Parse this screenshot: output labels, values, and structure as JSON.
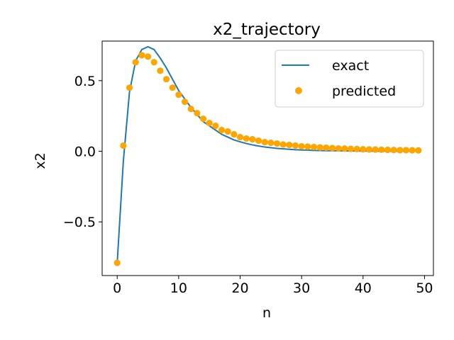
{
  "chart_data": {
    "type": "line",
    "title": "x2_trajectory",
    "xlabel": "n",
    "ylabel": "x2",
    "xlim": [
      -2.45,
      51.45
    ],
    "ylim": [
      -0.88,
      0.78
    ],
    "grid": false,
    "legend_position": "top-right",
    "x_ticks": [
      0,
      10,
      20,
      30,
      40,
      50
    ],
    "x_tick_labels": [
      "0",
      "10",
      "20",
      "30",
      "40",
      "50"
    ],
    "y_ticks": [
      -0.5,
      0.0,
      0.5
    ],
    "y_tick_labels": [
      "−0.5",
      "0.0",
      "0.5"
    ],
    "series": [
      {
        "name": "exact",
        "kind": "line",
        "color": "#1f77b4",
        "x": [
          0,
          1,
          2,
          3,
          4,
          5,
          6,
          7,
          8,
          9,
          10,
          11,
          12,
          13,
          14,
          15,
          16,
          17,
          18,
          19,
          20,
          21,
          22,
          23,
          24,
          25,
          26,
          27,
          28,
          29,
          30,
          31,
          32,
          33,
          34,
          35,
          36,
          37,
          38,
          39,
          40,
          41,
          42,
          43,
          44,
          45,
          46,
          47,
          48,
          49
        ],
        "y": [
          -0.79,
          -0.07,
          0.42,
          0.64,
          0.72,
          0.74,
          0.72,
          0.66,
          0.59,
          0.51,
          0.43,
          0.37,
          0.31,
          0.26,
          0.21,
          0.18,
          0.15,
          0.12,
          0.1,
          0.08,
          0.067,
          0.055,
          0.045,
          0.037,
          0.03,
          0.025,
          0.02,
          0.017,
          0.014,
          0.011,
          0.009,
          0.008,
          0.006,
          0.005,
          0.004,
          0.004,
          0.003,
          0.003,
          0.002,
          0.002,
          0.002,
          0.001,
          0.001,
          0.001,
          0.001,
          0.001,
          0.001,
          0.001,
          0.0,
          0.0
        ]
      },
      {
        "name": "predicted",
        "kind": "scatter",
        "color": "#ffa500",
        "x": [
          0,
          1,
          2,
          3,
          4,
          5,
          6,
          7,
          8,
          9,
          10,
          11,
          12,
          13,
          14,
          15,
          16,
          17,
          18,
          19,
          20,
          21,
          22,
          23,
          24,
          25,
          26,
          27,
          28,
          29,
          30,
          31,
          32,
          33,
          34,
          35,
          36,
          37,
          38,
          39,
          40,
          41,
          42,
          43,
          44,
          45,
          46,
          47,
          48,
          49
        ],
        "y": [
          -0.79,
          0.04,
          0.45,
          0.63,
          0.68,
          0.67,
          0.63,
          0.57,
          0.51,
          0.45,
          0.4,
          0.35,
          0.3,
          0.27,
          0.23,
          0.2,
          0.18,
          0.15,
          0.14,
          0.12,
          0.1,
          0.09,
          0.085,
          0.075,
          0.065,
          0.06,
          0.055,
          0.048,
          0.045,
          0.04,
          0.035,
          0.033,
          0.03,
          0.027,
          0.025,
          0.023,
          0.02,
          0.019,
          0.017,
          0.016,
          0.014,
          0.013,
          0.012,
          0.011,
          0.01,
          0.009,
          0.008,
          0.008,
          0.007,
          0.006
        ]
      }
    ]
  }
}
